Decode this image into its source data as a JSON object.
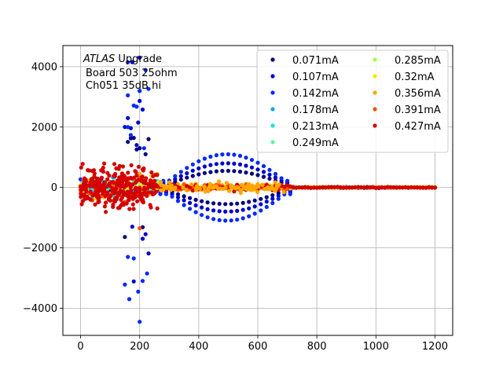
{
  "chart_data": {
    "type": "scatter",
    "title": "",
    "xlabel": "",
    "ylabel": "",
    "xlim": [
      -60,
      1260
    ],
    "ylim": [
      -4900,
      4700
    ],
    "xticks": [
      0,
      200,
      400,
      600,
      800,
      1000,
      1200
    ],
    "xtick_labels": [
      "0",
      "200",
      "400",
      "600",
      "800",
      "1000",
      "1200"
    ],
    "yticks": [
      -4000,
      -2000,
      0,
      2000,
      4000
    ],
    "ytick_labels": [
      "−4000",
      "−2000",
      "0",
      "2000",
      "4000"
    ],
    "grid": true,
    "legend_position": "top-right",
    "legend_columns": 2,
    "annotation": {
      "italic": "ATLAS",
      "rest": " Upgrade",
      "line2": "Board 503 25ohm",
      "line3": "Ch051 35dB hi"
    },
    "series": [
      {
        "name": "0.071mA",
        "color": "#00007f"
      },
      {
        "name": "0.107mA",
        "color": "#0000c8"
      },
      {
        "name": "0.142mA",
        "color": "#0029ff"
      },
      {
        "name": "0.178mA",
        "color": "#00a5ff"
      },
      {
        "name": "0.213mA",
        "color": "#19e3dd"
      },
      {
        "name": "0.249mA",
        "color": "#56ffa0"
      },
      {
        "name": "0.285mA",
        "color": "#a0ff56"
      },
      {
        "name": "0.32mA",
        "color": "#ffe600"
      },
      {
        "name": "0.356mA",
        "color": "#ffa600"
      },
      {
        "name": "0.391mA",
        "color": "#ff5000"
      },
      {
        "name": "0.427mA",
        "color": "#d40000"
      }
    ]
  }
}
